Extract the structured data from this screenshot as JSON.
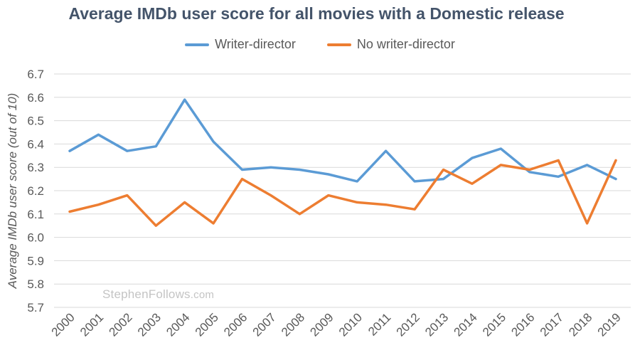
{
  "chart_data": {
    "type": "line",
    "title": "Average IMDb user score for all movies with a Domestic release",
    "xlabel": "",
    "ylabel": "Average IMDb user score (out of 10)",
    "categories": [
      "2000",
      "2001",
      "2002",
      "2003",
      "2004",
      "2005",
      "2006",
      "2007",
      "2008",
      "2009",
      "2010",
      "2011",
      "2012",
      "2013",
      "2014",
      "2015",
      "2016",
      "2017",
      "2018",
      "2019"
    ],
    "ylim": [
      5.7,
      6.7
    ],
    "yticks": [
      "5.7",
      "5.8",
      "5.9",
      "6.0",
      "6.1",
      "6.2",
      "6.3",
      "6.4",
      "6.5",
      "6.6",
      "6.7"
    ],
    "grid": true,
    "legend_position": "top",
    "series": [
      {
        "name": "Writer-director",
        "color": "#5b9bd5",
        "values": [
          6.37,
          6.44,
          6.37,
          6.39,
          6.59,
          6.41,
          6.29,
          6.3,
          6.29,
          6.27,
          6.24,
          6.37,
          6.24,
          6.25,
          6.34,
          6.38,
          6.28,
          6.26,
          6.31,
          6.25
        ]
      },
      {
        "name": "No writer-director",
        "color": "#ed7d31",
        "values": [
          6.11,
          6.14,
          6.18,
          6.05,
          6.15,
          6.06,
          6.25,
          6.18,
          6.1,
          6.18,
          6.15,
          6.14,
          6.12,
          6.29,
          6.23,
          6.31,
          6.29,
          6.33,
          6.06,
          6.33
        ]
      }
    ]
  },
  "watermark": {
    "main": "StephenFollows",
    "suffix": ".com"
  }
}
